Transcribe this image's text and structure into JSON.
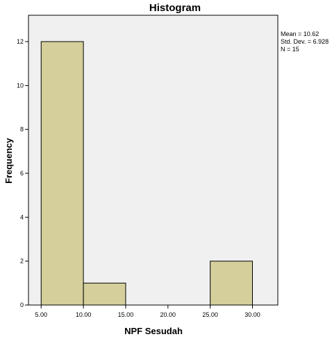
{
  "chart_data": {
    "type": "bar",
    "title": "Histogram",
    "xlabel": "NPF Sesudah",
    "ylabel": "Frequency",
    "bins": [
      {
        "start": 5.0,
        "end": 10.0,
        "count": 12
      },
      {
        "start": 10.0,
        "end": 15.0,
        "count": 1
      },
      {
        "start": 15.0,
        "end": 20.0,
        "count": 0
      },
      {
        "start": 20.0,
        "end": 25.0,
        "count": 0
      },
      {
        "start": 25.0,
        "end": 30.0,
        "count": 2
      }
    ],
    "xlim": [
      3.5,
      33.0
    ],
    "ylim": [
      0,
      13.2
    ],
    "x_ticks": [
      5,
      10,
      15,
      20,
      25,
      30
    ],
    "x_tick_labels": [
      "5.00",
      "10.00",
      "15.00",
      "20.00",
      "25.00",
      "30.00"
    ],
    "y_ticks": [
      0,
      2,
      4,
      6,
      8,
      10,
      12
    ],
    "y_tick_labels": [
      "0",
      "2",
      "4",
      "6",
      "8",
      "10",
      "12"
    ],
    "stats": {
      "mean": "Mean = 10.62",
      "std_dev": "Std. Dev. = 6.928",
      "n": "N = 15"
    },
    "grid": false,
    "colors": {
      "bar_fill": "#d4cf9b",
      "bar_stroke": "#000000",
      "plot_bg": "#f0f0f0"
    }
  }
}
